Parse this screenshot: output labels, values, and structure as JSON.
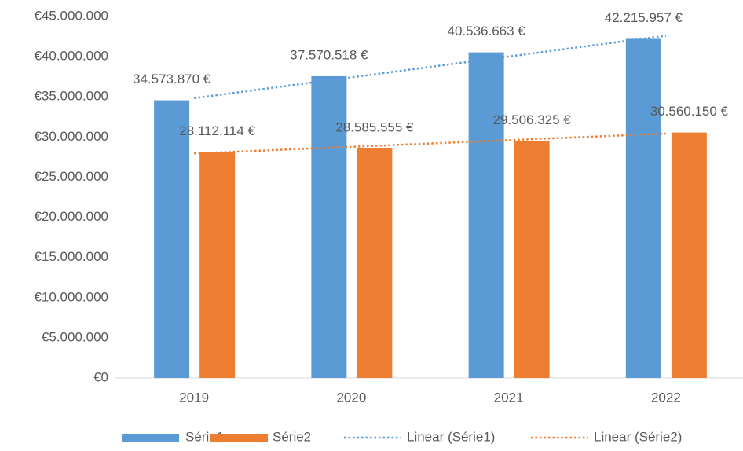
{
  "chart_data": {
    "type": "bar",
    "categories": [
      "2019",
      "2020",
      "2021",
      "2022"
    ],
    "series": [
      {
        "name": "Série1",
        "color": "#5b9bd5",
        "values": [
          34573870,
          37570518,
          40536663,
          42215957
        ],
        "value_labels": [
          "34.573.870 €",
          "37.570.518 €",
          "40.536.663 €",
          "42.215.957 €"
        ],
        "trendline": {
          "name": "Linear (Série1)",
          "type": "linear"
        }
      },
      {
        "name": "Série2",
        "color": "#ed7d31",
        "values": [
          28112114,
          28585555,
          29506325,
          30560150
        ],
        "value_labels": [
          "28.112.114 €",
          "28.585.555 €",
          "29.506.325 €",
          "30.560.150 €"
        ],
        "trendline": {
          "name": "Linear (Série2)",
          "type": "linear"
        }
      }
    ],
    "ylim": [
      0,
      45000000
    ],
    "yticks": [
      {
        "value": 0,
        "label": "€0"
      },
      {
        "value": 5000000,
        "label": "€5.000.000"
      },
      {
        "value": 10000000,
        "label": "€10.000.000"
      },
      {
        "value": 15000000,
        "label": "€15.000.000"
      },
      {
        "value": 20000000,
        "label": "€20.000.000"
      },
      {
        "value": 25000000,
        "label": "€25.000.000"
      },
      {
        "value": 30000000,
        "label": "€30.000.000"
      },
      {
        "value": 35000000,
        "label": "€35.000.000"
      },
      {
        "value": 40000000,
        "label": "€40.000.000"
      },
      {
        "value": 45000000,
        "label": "€45.000.000"
      }
    ],
    "grid": false,
    "legend": "bottom"
  }
}
